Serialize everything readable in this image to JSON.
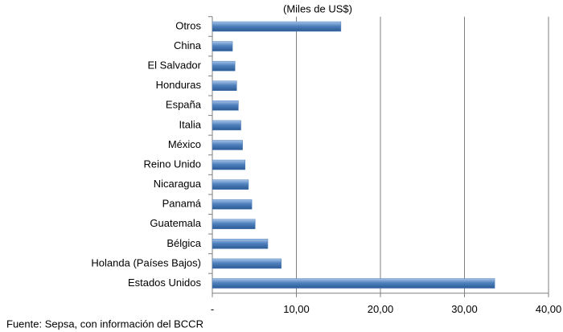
{
  "chart_data": {
    "type": "bar",
    "orientation": "horizontal",
    "subtitle": "(Miles de US$)",
    "categories": [
      "Otros",
      "China",
      "El Salvador",
      "Honduras",
      "España",
      "Italia",
      "México",
      "Reino Unido",
      "Nicaragua",
      "Panamá",
      "Guatemala",
      "Bélgica",
      "Holanda (Países Bajos)",
      "Estados Unidos"
    ],
    "values": [
      15.3,
      2.4,
      2.7,
      2.9,
      3.1,
      3.4,
      3.6,
      3.9,
      4.3,
      4.7,
      5.1,
      6.6,
      8.2,
      33.6
    ],
    "color": "#4f81bd",
    "xlim": [
      0,
      40
    ],
    "xticks": [
      {
        "value": 0,
        "label": "-"
      },
      {
        "value": 10,
        "label": "10,00"
      },
      {
        "value": 20,
        "label": "20,00"
      },
      {
        "value": 30,
        "label": "30,00"
      },
      {
        "value": 40,
        "label": "40,00"
      }
    ],
    "grid": true,
    "source": "Fuente: Sepsa, con información del BCCR"
  }
}
